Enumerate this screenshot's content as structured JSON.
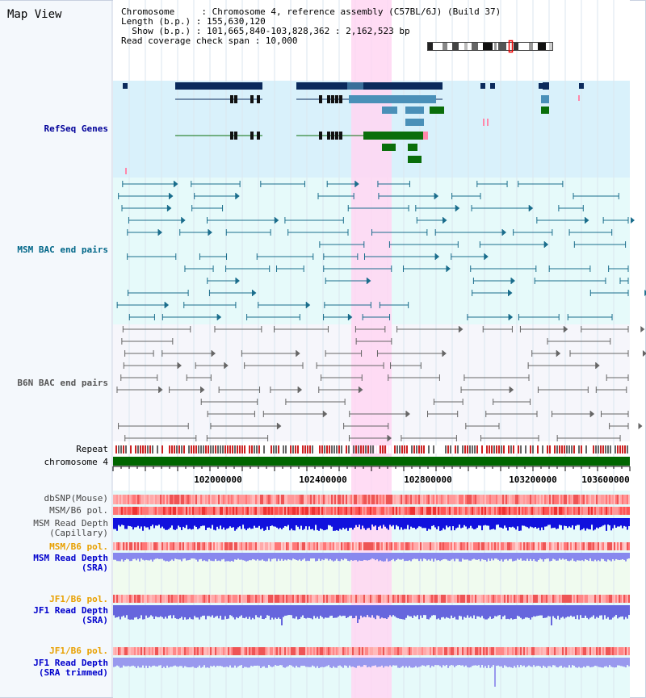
{
  "title": "Map View",
  "info": {
    "line1": "Chromosome     : Chromosome 4, reference assembly (C57BL/6J) (Build 37)",
    "line2": "Length (b.p.) : 155,630,120",
    "line3": "  Show (b.p.) : 101,665,840-103,828,362 : 2,162,523 bp",
    "line4": "Read coverage check span : 10,000"
  },
  "tracks": {
    "refseq": "RefSeq Genes",
    "msm_bac": "MSM BAC end pairs",
    "b6n_bac": "B6N BAC end pairs",
    "repeat": "Repeat",
    "chromosome": "chromosome 4",
    "dbsnp": "dbSNP(Mouse)",
    "msm_b6_pol": "MSM/B6 pol.",
    "msm_read_depth_cap_1": "MSM Read Depth",
    "msm_read_depth_cap_2": "(Capillary)",
    "msm_b6_pol_2": "MSM/B6 pol.",
    "msm_read_depth_sra_1": "MSM Read Depth",
    "msm_read_depth_sra_2": "(SRA)",
    "jf1_b6_pol": "JF1/B6 pol.",
    "jf1_read_depth_sra_1": "JF1 Read Depth",
    "jf1_read_depth_sra_2": "(SRA)",
    "jf1_b6_pol_2": "JF1/B6 pol.",
    "jf1_read_depth_trim_1": "JF1 Read Depth",
    "jf1_read_depth_trim_2": "(SRA trimmed)"
  },
  "axis": {
    "ticks": [
      "102000000",
      "102400000",
      "102800000",
      "103200000",
      "103600000"
    ]
  },
  "colors": {
    "refseq_label": "#000099",
    "msm_label": "#006688",
    "orange_label": "#e8a000",
    "blue_label": "#0000cc",
    "highlight": "#ffd6f2",
    "refseq_bg": "#d9f1fb",
    "msm_bg": "#e6fafa",
    "b6n_bg": "#f6f6fb",
    "gene_dark": "#0b2a5c",
    "gene_mid": "#4a90b8",
    "gene_green": "#0a6e0a",
    "chrom_green": "#006600"
  }
}
